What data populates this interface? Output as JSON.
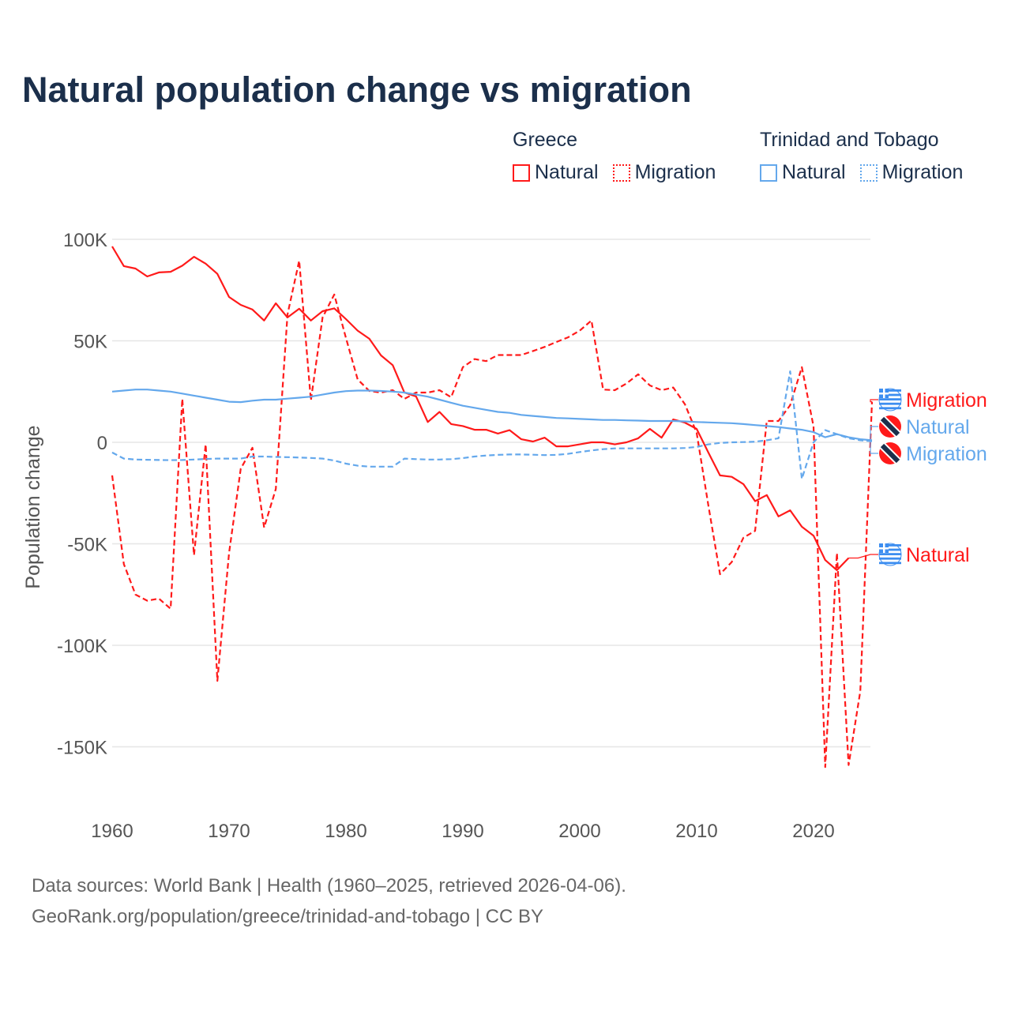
{
  "chart_data": {
    "type": "line",
    "title": "Natural population change vs migration",
    "xlabel": "",
    "ylabel": "Population change",
    "unit": "thousands",
    "xlim": [
      1960,
      2025
    ],
    "ylim": [
      -160,
      100
    ],
    "x_ticks": [
      "1960",
      "1970",
      "1980",
      "1990",
      "2000",
      "2010",
      "2020"
    ],
    "y_ticks": [
      {
        "v": 100,
        "label": "100K"
      },
      {
        "v": 50,
        "label": "50K"
      },
      {
        "v": 0,
        "label": "0"
      },
      {
        "v": -50,
        "label": "-50K"
      },
      {
        "v": -100,
        "label": "-100K"
      },
      {
        "v": -150,
        "label": "-150K"
      }
    ],
    "grid": true,
    "legend": {
      "placement": "top-right",
      "groups": [
        {
          "name": "Greece",
          "items": [
            "Natural",
            "Migration"
          ]
        },
        {
          "name": "Trinidad and Tobago",
          "items": [
            "Natural",
            "Migration"
          ]
        }
      ]
    },
    "series": [
      {
        "country": "Greece",
        "name": "Natural",
        "color": "#ff1a1a",
        "dash": false,
        "start": 1960,
        "values": [
          96.5,
          86.8,
          85.6,
          81.7,
          83.7,
          84,
          87,
          91.4,
          88,
          83,
          71.6,
          67.7,
          65.4,
          60,
          68.5,
          61.5,
          65.8,
          60,
          64.6,
          66,
          60.7,
          55,
          51,
          42.8,
          38,
          24.5,
          22.6,
          10,
          15,
          9,
          8,
          6.2,
          6.2,
          4.3,
          6,
          1.5,
          0.4,
          2.3,
          -2,
          -2,
          -1,
          0,
          0,
          -1,
          0,
          2,
          6.6,
          2.3,
          11.3,
          9.7,
          6.6,
          -5,
          -16.3,
          -17,
          -20.6,
          -29,
          -26,
          -36.5,
          -33.5,
          -41.6,
          -46,
          -58,
          -63,
          -57
        ],
        "end_label": "Natural",
        "end_label_value": -55.5
      },
      {
        "country": "Greece",
        "name": "Migration",
        "color": "#ff1a1a",
        "dash": true,
        "start": 1960,
        "values": [
          -16.3,
          -60,
          -75,
          -78,
          -77,
          -82,
          21.4,
          -55.6,
          -1,
          -117.5,
          -54.5,
          -13,
          -2.7,
          -42,
          -23,
          63,
          89.5,
          20.6,
          61.5,
          72.8,
          51.4,
          31,
          25.3,
          24.5,
          25.7,
          21.4,
          24.5,
          24.5,
          25.7,
          22.2,
          37,
          41,
          40,
          43,
          43,
          43,
          45,
          47,
          49.4,
          51.7,
          55,
          60,
          26,
          25.7,
          29,
          33.5,
          28,
          25.7,
          27,
          18.7,
          4.7,
          -31,
          -65,
          -59,
          -47,
          -43.6,
          10.5,
          10.5,
          18.3,
          37,
          7.8,
          -160,
          -54.5,
          -159,
          -122.6,
          20
        ],
        "end_label": "Migration",
        "end_label_value": 21
      },
      {
        "country": "Trinidad and Tobago",
        "name": "Natural",
        "color": "#64a8ec",
        "dash": false,
        "start": 1960,
        "values": [
          25,
          25.5,
          26,
          26,
          25.5,
          25,
          24,
          23,
          22,
          21,
          20,
          19.8,
          20.5,
          21,
          21,
          21.5,
          22,
          22.5,
          23.5,
          24.5,
          25.2,
          25.5,
          25.5,
          25.3,
          25,
          24.5,
          23.5,
          22.5,
          21,
          19.5,
          18,
          17,
          16,
          15,
          14.5,
          13.5,
          13,
          12.5,
          12,
          11.8,
          11.5,
          11.3,
          11,
          11,
          10.8,
          10.7,
          10.5,
          10.5,
          10.5,
          10.3,
          10,
          9.8,
          9.6,
          9.4,
          9,
          8.5,
          8,
          7.5,
          6.8,
          6.2,
          5,
          2.5,
          4,
          2.5,
          1.5,
          1
        ],
        "end_label": "Natural",
        "end_label_value": 8
      },
      {
        "country": "Trinidad and Tobago",
        "name": "Migration",
        "color": "#64a8ec",
        "dash": true,
        "start": 1960,
        "values": [
          -5,
          -8,
          -8.5,
          -8.6,
          -8.7,
          -8.8,
          -8.7,
          -8.5,
          -8.2,
          -8,
          -8,
          -8,
          -7,
          -7,
          -7.2,
          -7.3,
          -7.5,
          -7.7,
          -8,
          -9,
          -10.5,
          -11.5,
          -12,
          -12,
          -12,
          -8,
          -8.3,
          -8.5,
          -8.5,
          -8.3,
          -7.8,
          -7,
          -6.5,
          -6.2,
          -6,
          -6,
          -6.1,
          -6.3,
          -6.2,
          -5.7,
          -4.8,
          -4,
          -3.4,
          -3,
          -3,
          -3,
          -3,
          -3,
          -3,
          -2.8,
          -2.3,
          -1,
          -0.3,
          0,
          0.1,
          0.3,
          1,
          2,
          35,
          -18,
          0,
          6,
          4,
          2,
          1,
          0.5
        ],
        "end_label": "Migration",
        "end_label_value": -5
      }
    ]
  },
  "colors": {
    "greece": "#ff1a1a",
    "trinidad": "#64a8ec",
    "title": "#1b2f4b"
  },
  "icons": {
    "greece_flag": "greece-flag-icon",
    "trinidad_flag": "trinidad-flag-icon"
  },
  "footer": {
    "line1": "Data sources: World Bank | Health (1960–2025, retrieved 2026-04-06).",
    "line2": "GeoRank.org/population/greece/trinidad-and-tobago | CC BY"
  }
}
